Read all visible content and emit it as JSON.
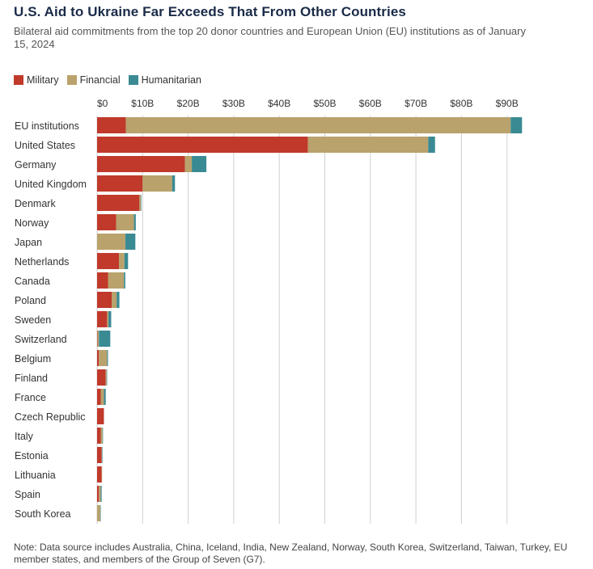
{
  "title": "U.S. Aid to Ukraine Far Exceeds That From Other Countries",
  "subtitle": "Bilateral aid commitments from the top 20 donor countries and European Union (EU) institutions as of January 15, 2024",
  "note": "Note: Data source includes Australia, China, Iceland, India, New Zealand, Norway, South Korea, Switzerland, Taiwan, Turkey, EU member states, and members of the Group of Seven (G7).",
  "colors": {
    "Military": "#c0392b",
    "Financial": "#b9a26c",
    "Humanitarian": "#3a8a93",
    "grid": "#d0d0d0"
  },
  "chart_data": {
    "type": "bar",
    "orientation": "horizontal",
    "stacked": true,
    "title": "U.S. Aid to Ukraine Far Exceeds That From Other Countries",
    "xlabel": "",
    "ylabel": "",
    "xlim": [
      0,
      93
    ],
    "x_ticks": [
      0,
      10,
      20,
      30,
      40,
      50,
      60,
      70,
      80,
      90
    ],
    "x_tick_labels": [
      "$0",
      "$10B",
      "$20B",
      "$30B",
      "$40B",
      "$50B",
      "$60B",
      "$70B",
      "$80B",
      "$90B"
    ],
    "grid": "vertical",
    "legend": "top-left",
    "categories": [
      "EU institutions",
      "United States",
      "Germany",
      "United Kingdom",
      "Denmark",
      "Norway",
      "Japan",
      "Netherlands",
      "Canada",
      "Poland",
      "Sweden",
      "Switzerland",
      "Belgium",
      "Finland",
      "France",
      "Czech Republic",
      "Italy",
      "Estonia",
      "Lithuania",
      "Spain",
      "South Korea"
    ],
    "series": [
      {
        "name": "Military",
        "values": [
          6.3,
          46.3,
          19.3,
          10.0,
          9.3,
          4.2,
          0.0,
          4.8,
          2.4,
          3.2,
          2.2,
          0.1,
          0.4,
          1.9,
          0.8,
          1.5,
          0.8,
          1.0,
          1.0,
          0.4,
          0.0
        ]
      },
      {
        "name": "Financial",
        "values": [
          84.5,
          26.4,
          1.5,
          6.5,
          0.3,
          3.9,
          6.2,
          1.2,
          3.5,
          1.1,
          0.3,
          0.3,
          1.8,
          0.2,
          0.7,
          0.0,
          0.4,
          0.1,
          0.1,
          0.4,
          0.7
        ]
      },
      {
        "name": "Humanitarian",
        "values": [
          2.5,
          1.5,
          3.2,
          0.6,
          0.1,
          0.4,
          2.2,
          0.8,
          0.3,
          0.6,
          0.6,
          2.5,
          0.2,
          0.1,
          0.4,
          0.0,
          0.1,
          0.1,
          0.0,
          0.2,
          0.1
        ]
      }
    ]
  }
}
